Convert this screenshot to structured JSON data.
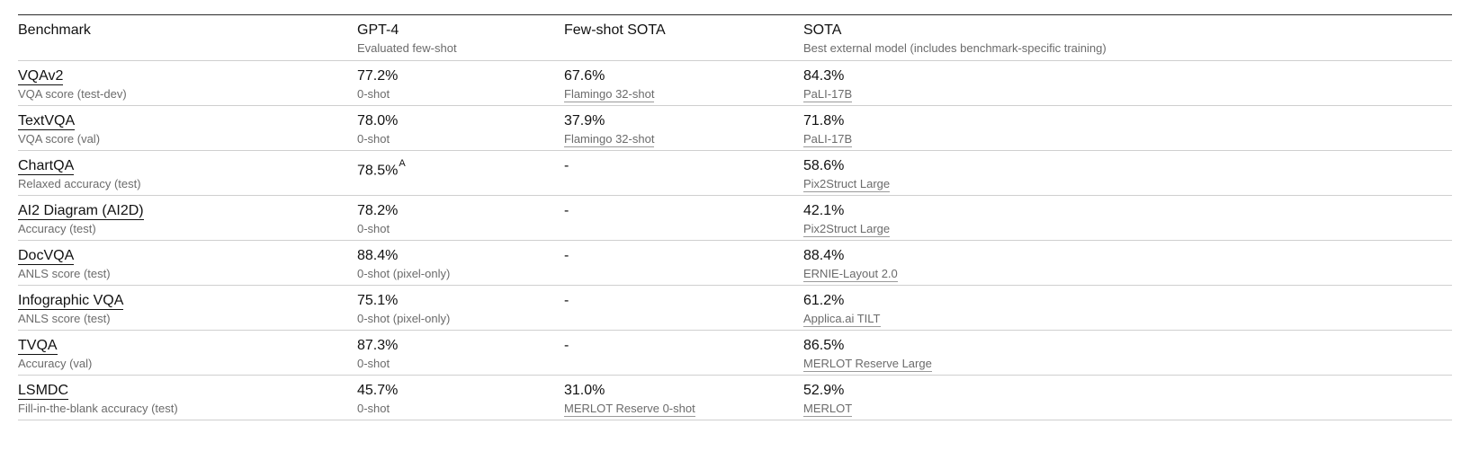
{
  "header": {
    "benchmark": "Benchmark",
    "gpt4": "GPT-4",
    "gpt4_sub": "Evaluated few-shot",
    "fewshot": "Few-shot SOTA",
    "sota": "SOTA",
    "sota_sub": "Best external model (includes benchmark-specific training)"
  },
  "rows": [
    {
      "name": "VQAv2",
      "metric": "VQA score (test-dev)",
      "gpt4": "77.2%",
      "gpt4_note": "",
      "gpt4_sub": "0-shot",
      "fs": "67.6%",
      "fs_sub": "Flamingo 32-shot",
      "sota": "84.3%",
      "sota_sub": "PaLI-17B"
    },
    {
      "name": "TextVQA",
      "metric": "VQA score (val)",
      "gpt4": "78.0%",
      "gpt4_note": "",
      "gpt4_sub": "0-shot",
      "fs": "37.9%",
      "fs_sub": "Flamingo 32-shot",
      "sota": "71.8%",
      "sota_sub": "PaLI-17B"
    },
    {
      "name": "ChartQA",
      "metric": "Relaxed accuracy (test)",
      "gpt4": "78.5%",
      "gpt4_note": "A",
      "gpt4_sub": "",
      "fs": "-",
      "fs_sub": "",
      "sota": "58.6%",
      "sota_sub": "Pix2Struct Large"
    },
    {
      "name": "AI2 Diagram (AI2D)",
      "metric": "Accuracy (test)",
      "gpt4": "78.2%",
      "gpt4_note": "",
      "gpt4_sub": "0-shot",
      "fs": "-",
      "fs_sub": "",
      "sota": "42.1%",
      "sota_sub": "Pix2Struct Large"
    },
    {
      "name": "DocVQA",
      "metric": "ANLS score (test)",
      "gpt4": "88.4%",
      "gpt4_note": "",
      "gpt4_sub": "0-shot (pixel-only)",
      "fs": "-",
      "fs_sub": "",
      "sota": "88.4%",
      "sota_sub": "ERNIE-Layout 2.0"
    },
    {
      "name": "Infographic VQA",
      "metric": "ANLS score (test)",
      "gpt4": "75.1%",
      "gpt4_note": "",
      "gpt4_sub": "0-shot (pixel-only)",
      "fs": "-",
      "fs_sub": "",
      "sota": "61.2%",
      "sota_sub": "Applica.ai TILT"
    },
    {
      "name": "TVQA",
      "metric": "Accuracy (val)",
      "gpt4": "87.3%",
      "gpt4_note": "",
      "gpt4_sub": "0-shot",
      "fs": "-",
      "fs_sub": "",
      "sota": "86.5%",
      "sota_sub": "MERLOT Reserve Large"
    },
    {
      "name": "LSMDC",
      "metric": "Fill-in-the-blank accuracy (test)",
      "gpt4": "45.7%",
      "gpt4_note": "",
      "gpt4_sub": "0-shot",
      "fs": "31.0%",
      "fs_sub": "MERLOT Reserve 0-shot",
      "sota": "52.9%",
      "sota_sub": "MERLOT"
    }
  ]
}
